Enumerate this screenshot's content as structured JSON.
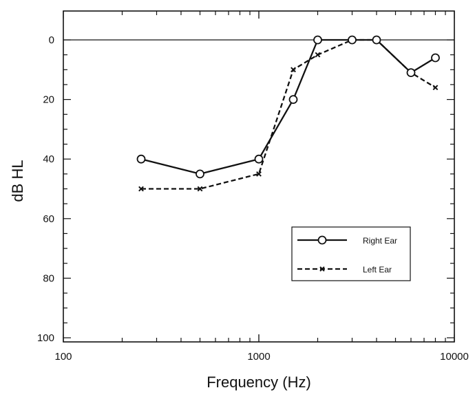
{
  "chart_data": {
    "type": "line",
    "title": "",
    "xlabel": "Frequency (Hz)",
    "ylabel": "dB HL",
    "x_scale": "log",
    "xlim": [
      100,
      10000
    ],
    "ylim": [
      100,
      -10
    ],
    "y_inverted": true,
    "x_ticks": [
      100,
      1000,
      10000
    ],
    "x_tick_labels": [
      "100",
      "1000",
      "10000"
    ],
    "y_ticks": [
      0,
      20,
      40,
      60,
      80,
      100
    ],
    "y_tick_labels": [
      "0",
      "20",
      "40",
      "60",
      "80",
      "100"
    ],
    "reference_line_y": 0,
    "grid": false,
    "legend_position": "lower-right",
    "series": [
      {
        "name": "Right Ear",
        "marker": "circle",
        "line_style": "solid",
        "color": "#111111",
        "x": [
          250,
          500,
          1000,
          1500,
          2000,
          3000,
          4000,
          6000,
          8000
        ],
        "y": [
          40,
          45,
          40,
          20,
          0,
          0,
          0,
          11,
          6
        ]
      },
      {
        "name": "Left Ear",
        "marker": "x",
        "line_style": "dashed",
        "color": "#111111",
        "x": [
          250,
          500,
          1000,
          1500,
          2000,
          3000,
          4000,
          6000,
          8000
        ],
        "y": [
          50,
          50,
          45,
          10,
          5,
          0,
          0,
          11,
          16
        ]
      }
    ]
  }
}
